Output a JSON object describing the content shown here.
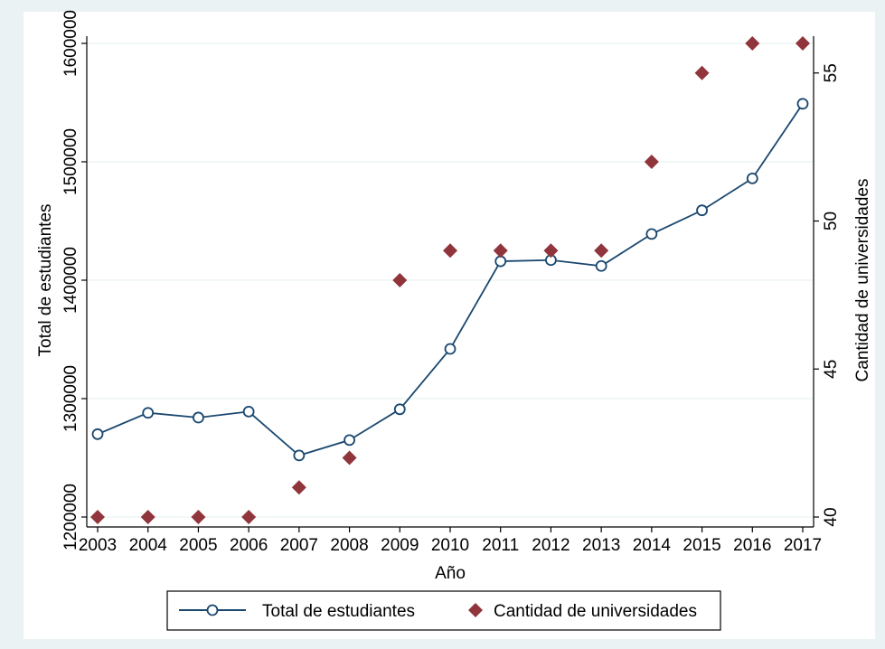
{
  "chart_data": {
    "type": "line+scatter",
    "xlabel": "Año",
    "ylabel_left": "Total de estudiantes",
    "ylabel_right": "Cantidad de universidades",
    "x": [
      2003,
      2004,
      2005,
      2006,
      2007,
      2008,
      2009,
      2010,
      2011,
      2012,
      2013,
      2014,
      2015,
      2016,
      2017
    ],
    "x_tick_labels": [
      "2003",
      "2004",
      "2005",
      "2006",
      "2007",
      "2008",
      "2009",
      "2010",
      "2011",
      "2012",
      "2013",
      "2014",
      "2015",
      "2016",
      "2017"
    ],
    "ylim_left": [
      1200000,
      1600000
    ],
    "ylim_right": [
      40,
      56
    ],
    "y_left_ticks": [
      "1200000",
      "1300000",
      "1400000",
      "1500000",
      "1600000"
    ],
    "y_right_ticks": [
      "40",
      "45",
      "50",
      "55"
    ],
    "grid": "horizontal",
    "legend_position": "bottom",
    "series": [
      {
        "name": "Total de estudiantes",
        "type": "line",
        "axis": "left",
        "color": "#1a476f",
        "marker": "hollow-circle",
        "values": [
          1270000,
          1288000,
          1284000,
          1289000,
          1252000,
          1265000,
          1291000,
          1342000,
          1416000,
          1417000,
          1412000,
          1439000,
          1459000,
          1486000,
          1549000
        ]
      },
      {
        "name": "Cantidad de universidades",
        "type": "scatter",
        "axis": "right",
        "color": "#90353b",
        "marker": "diamond",
        "values": [
          40,
          40,
          40,
          40,
          41,
          42,
          48,
          49,
          49,
          49,
          49,
          52,
          55,
          56,
          56
        ]
      }
    ]
  }
}
